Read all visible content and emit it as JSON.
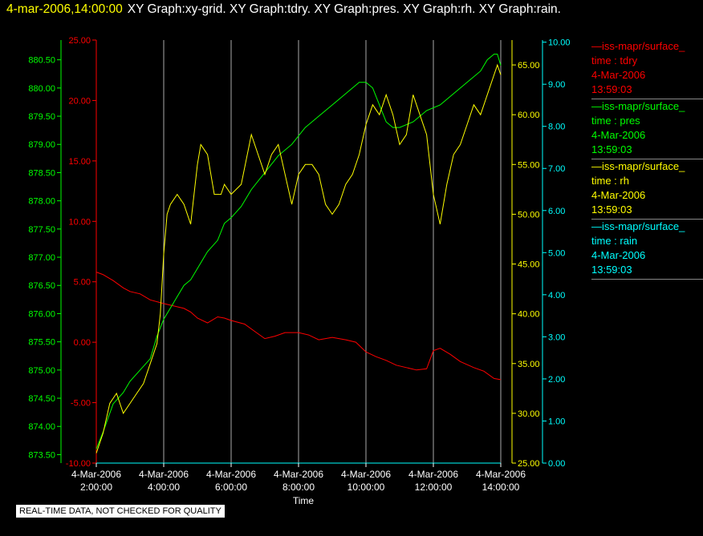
{
  "header": {
    "timestamp": "4-mar-2006,14:00:00",
    "title": "XY Graph:xy-grid.  XY Graph:tdry.  XY Graph:pres.  XY Graph:rh.  XY Graph:rain."
  },
  "colors": {
    "tdry": "#ff0000",
    "pres": "#00ff00",
    "rh": "#ffff00",
    "rain": "#00ffff",
    "grid": "#aaaaaa",
    "background": "#000000"
  },
  "legend": [
    {
      "name": "iss-mapr/surface_",
      "field": "time : tdry",
      "date": "4-Mar-2006",
      "time": "13:59:03",
      "color": "#ff0000"
    },
    {
      "name": "iss-mapr/surface_",
      "field": "time : pres",
      "date": "4-Mar-2006",
      "time": "13:59:03",
      "color": "#00ff00"
    },
    {
      "name": "iss-mapr/surface_",
      "field": "time : rh",
      "date": "4-Mar-2006",
      "time": "13:59:03",
      "color": "#ffff00"
    },
    {
      "name": "iss-mapr/surface_",
      "field": "time : rain",
      "date": "4-Mar-2006",
      "time": "13:59:03",
      "color": "#00ffff"
    }
  ],
  "disclaimer": "REAL-TIME DATA, NOT CHECKED FOR QUALITY",
  "chart_data": {
    "type": "line",
    "xlabel": "Time",
    "x_ticks": [
      {
        "date": "4-Mar-2006",
        "time": "2:00:00",
        "hours": 2
      },
      {
        "date": "4-Mar-2006",
        "time": "4:00:00",
        "hours": 4
      },
      {
        "date": "4-Mar-2006",
        "time": "6:00:00",
        "hours": 6
      },
      {
        "date": "4-Mar-2006",
        "time": "8:00:00",
        "hours": 8
      },
      {
        "date": "4-Mar-2006",
        "time": "10:00:00",
        "hours": 10
      },
      {
        "date": "4-Mar-2006",
        "time": "12:00:00",
        "hours": 12
      },
      {
        "date": "4-Mar-2006",
        "time": "14:00:00",
        "hours": 14
      }
    ],
    "xlim": [
      2,
      14
    ],
    "grid": "vertical",
    "axes": {
      "tdry": {
        "range": [
          -10,
          25
        ],
        "ticks": [
          "-10.00",
          "-5.00",
          "0.00",
          "5.00",
          "10.00",
          "15.00",
          "20.00",
          "25.00"
        ],
        "color": "#ff0000"
      },
      "pres": {
        "range": [
          873.35,
          880.85
        ],
        "ticks": [
          "873.50",
          "874.00",
          "874.50",
          "875.00",
          "875.50",
          "876.00",
          "876.50",
          "877.00",
          "877.50",
          "878.00",
          "878.50",
          "879.00",
          "879.50",
          "880.00",
          "880.50"
        ],
        "color": "#00ff00"
      },
      "rh": {
        "range": [
          25,
          67.5
        ],
        "ticks": [
          "25.00",
          "30.00",
          "35.00",
          "40.00",
          "45.00",
          "50.00",
          "55.00",
          "60.00",
          "65.00"
        ],
        "color": "#ffff00"
      },
      "rain": {
        "range": [
          0,
          10.05
        ],
        "ticks": [
          "0.00",
          "1.00",
          "2.00",
          "3.00",
          "4.00",
          "5.00",
          "6.00",
          "7.00",
          "8.00",
          "9.00",
          "10.00"
        ],
        "color": "#00ffff"
      }
    },
    "series": [
      {
        "name": "tdry",
        "color": "#ff0000",
        "x": [
          2.0,
          2.2,
          2.5,
          2.8,
          3.0,
          3.3,
          3.6,
          4.0,
          4.3,
          4.6,
          4.8,
          5.0,
          5.3,
          5.6,
          5.8,
          6.0,
          6.4,
          6.7,
          7.0,
          7.3,
          7.6,
          8.0,
          8.3,
          8.6,
          9.0,
          9.4,
          9.7,
          10.0,
          10.3,
          10.6,
          10.9,
          11.2,
          11.5,
          11.8,
          12.0,
          12.2,
          12.5,
          12.8,
          13.2,
          13.5,
          13.8,
          14.0
        ],
        "y": [
          5.8,
          5.6,
          5.1,
          4.5,
          4.2,
          4.0,
          3.5,
          3.2,
          3.0,
          2.8,
          2.5,
          2.0,
          1.6,
          2.1,
          2.0,
          1.8,
          1.5,
          0.9,
          0.3,
          0.5,
          0.8,
          0.8,
          0.6,
          0.2,
          0.4,
          0.2,
          0.0,
          -0.8,
          -1.2,
          -1.5,
          -1.9,
          -2.1,
          -2.3,
          -2.2,
          -0.7,
          -0.5,
          -1.0,
          -1.6,
          -2.1,
          -2.4,
          -3.0,
          -3.1
        ]
      },
      {
        "name": "pres",
        "color": "#00ff00",
        "x": [
          2.0,
          2.2,
          2.5,
          2.8,
          3.0,
          3.3,
          3.6,
          3.8,
          4.0,
          4.2,
          4.4,
          4.6,
          4.8,
          5.0,
          5.3,
          5.6,
          5.8,
          6.0,
          6.3,
          6.6,
          7.0,
          7.4,
          7.8,
          8.2,
          8.6,
          9.0,
          9.4,
          9.8,
          10.0,
          10.2,
          10.4,
          10.6,
          10.8,
          11.0,
          11.4,
          11.8,
          12.2,
          12.6,
          13.0,
          13.4,
          13.6,
          13.8,
          13.9,
          14.0
        ],
        "y": [
          873.6,
          873.9,
          874.4,
          874.6,
          874.8,
          875.0,
          875.2,
          875.6,
          875.9,
          876.1,
          876.3,
          876.5,
          876.6,
          876.8,
          877.1,
          877.3,
          877.6,
          877.7,
          877.9,
          878.2,
          878.5,
          878.8,
          879.0,
          879.3,
          879.5,
          879.7,
          879.9,
          880.1,
          880.1,
          880.0,
          879.7,
          879.4,
          879.3,
          879.3,
          879.4,
          879.6,
          879.7,
          879.9,
          880.1,
          880.3,
          880.5,
          880.6,
          880.6,
          880.4
        ]
      },
      {
        "name": "rh",
        "color": "#ffff00",
        "x": [
          2.0,
          2.2,
          2.4,
          2.6,
          2.8,
          3.0,
          3.2,
          3.4,
          3.6,
          3.8,
          3.9,
          4.0,
          4.1,
          4.2,
          4.4,
          4.6,
          4.8,
          5.0,
          5.1,
          5.3,
          5.5,
          5.7,
          5.8,
          6.0,
          6.3,
          6.6,
          6.8,
          7.0,
          7.2,
          7.4,
          7.6,
          7.8,
          8.0,
          8.2,
          8.4,
          8.6,
          8.8,
          9.0,
          9.2,
          9.4,
          9.6,
          9.8,
          10.0,
          10.2,
          10.4,
          10.6,
          10.8,
          11.0,
          11.2,
          11.4,
          11.6,
          11.8,
          12.0,
          12.2,
          12.4,
          12.6,
          12.8,
          13.0,
          13.2,
          13.4,
          13.6,
          13.8,
          13.9,
          14.0
        ],
        "y": [
          26,
          28,
          31,
          32,
          30,
          31,
          32,
          33,
          35,
          37,
          40,
          46,
          50,
          51,
          52,
          51,
          49,
          55,
          57,
          56,
          52,
          52,
          53,
          52,
          53,
          58,
          56,
          54,
          56,
          57,
          54,
          51,
          54,
          55,
          55,
          54,
          51,
          50,
          51,
          53,
          54,
          56,
          59,
          61,
          60,
          62,
          60,
          57,
          58,
          62,
          60,
          58,
          52,
          49,
          53,
          56,
          57,
          59,
          61,
          60,
          62,
          64,
          65,
          64
        ]
      },
      {
        "name": "rain",
        "color": "#00ffff",
        "x": [
          2,
          14
        ],
        "y": [
          0,
          0
        ]
      }
    ]
  }
}
